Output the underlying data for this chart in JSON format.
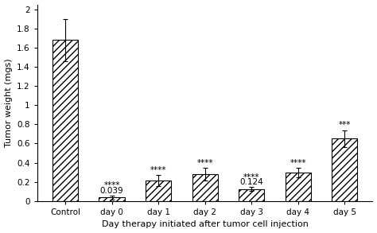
{
  "categories": [
    "Control",
    "day 0",
    "day 1",
    "day 2",
    "day 3",
    "day 4",
    "day 5"
  ],
  "values": [
    1.68,
    0.039,
    0.215,
    0.28,
    0.124,
    0.295,
    0.65
  ],
  "errors": [
    0.22,
    0.02,
    0.055,
    0.065,
    0.02,
    0.05,
    0.09
  ],
  "significance": [
    "",
    "****",
    "****",
    "****",
    "****",
    "****",
    "***"
  ],
  "value_labels": [
    "",
    "0.039",
    "",
    "",
    "0.124",
    "",
    ""
  ],
  "bar_color": "#ffffff",
  "bar_edgecolor": "#000000",
  "hatch": "////",
  "ylabel": "Tumor weight (mgs)",
  "xlabel": "Day therapy initiated after tumor cell injection",
  "ylim": [
    0,
    2.05
  ],
  "yticks": [
    0,
    0.2,
    0.4,
    0.6,
    0.8,
    1.0,
    1.2,
    1.4,
    1.6,
    1.8,
    2.0
  ],
  "ytick_labels": [
    "0",
    "0.2",
    "0.4",
    "0.6",
    "0.8",
    "1",
    "1.2",
    "1.4",
    "1.6",
    "1.8",
    "2"
  ],
  "bar_width": 0.55,
  "sig_fontsize": 7.5,
  "label_fontsize": 7.5,
  "axis_fontsize": 8,
  "tick_fontsize": 7.5,
  "figsize": [
    4.74,
    2.93
  ],
  "dpi": 100
}
